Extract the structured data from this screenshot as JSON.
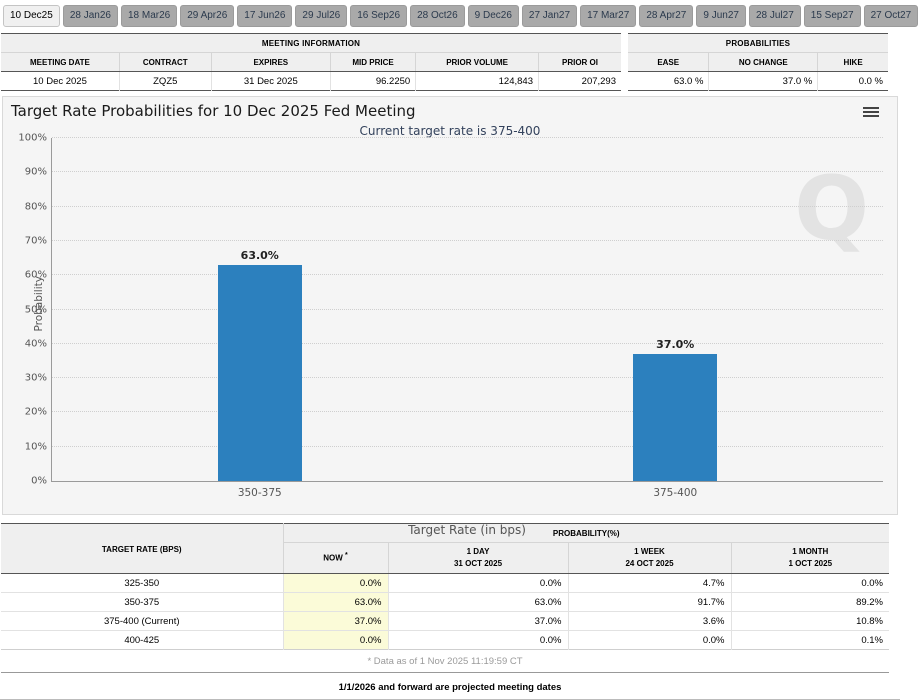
{
  "tabs": {
    "selected_index": 0,
    "labels": [
      "10 Dec25",
      "28 Jan26",
      "18 Mar26",
      "29 Apr26",
      "17 Jun26",
      "29 Jul26",
      "16 Sep26",
      "28 Oct26",
      "9 Dec26",
      "27 Jan27",
      "17 Mar27",
      "28 Apr27",
      "9 Jun27",
      "28 Jul27",
      "15 Sep27",
      "27 Oct27"
    ]
  },
  "meeting_info": {
    "title": "MEETING INFORMATION",
    "headers": [
      "MEETING DATE",
      "CONTRACT",
      "EXPIRES",
      "MID PRICE",
      "PRIOR VOLUME",
      "PRIOR OI"
    ],
    "values": [
      "10 Dec 2025",
      "ZQZ5",
      "31 Dec 2025",
      "96.2250",
      "124,843",
      "207,293"
    ],
    "value_align": [
      "c",
      "c",
      "c",
      "r",
      "r",
      "r"
    ]
  },
  "probabilities_summary": {
    "title": "PROBABILITIES",
    "headers": [
      "EASE",
      "NO CHANGE",
      "HIKE"
    ],
    "values": [
      "63.0 %",
      "37.0 %",
      "0.0 %"
    ]
  },
  "chart_data": {
    "type": "bar",
    "title": "Target Rate Probabilities for 10 Dec 2025 Fed Meeting",
    "subtitle": "Current target rate is 375-400",
    "categories": [
      "350-375",
      "375-400"
    ],
    "values": [
      63.0,
      37.0
    ],
    "bar_labels": [
      "63.0%",
      "37.0%"
    ],
    "xlabel": "Target Rate (in bps)",
    "ylabel": "Probability",
    "ylim": [
      0,
      100
    ],
    "ytick_step": 10,
    "ytick_suffix": "%",
    "grid": "dotted-horizontal",
    "legend": "none",
    "bar_color": "#2c80be",
    "watermark": "Q"
  },
  "probability_table": {
    "rate_header": "TARGET RATE (BPS)",
    "group_header": "PROBABILITY(%)",
    "now_label": "NOW",
    "now_superscript": "*",
    "history_columns": [
      {
        "line1": "1 DAY",
        "line2": "31 OCT 2025"
      },
      {
        "line1": "1 WEEK",
        "line2": "24 OCT 2025"
      },
      {
        "line1": "1 MONTH",
        "line2": "1 OCT 2025"
      }
    ],
    "rows": [
      {
        "rate": "325-350",
        "now": "0.0%",
        "day": "0.0%",
        "week": "4.7%",
        "month": "0.0%"
      },
      {
        "rate": "350-375",
        "now": "63.0%",
        "day": "63.0%",
        "week": "91.7%",
        "month": "89.2%"
      },
      {
        "rate": "375-400 (Current)",
        "now": "37.0%",
        "day": "37.0%",
        "week": "3.6%",
        "month": "10.8%"
      },
      {
        "rate": "400-425",
        "now": "0.0%",
        "day": "0.0%",
        "week": "0.0%",
        "month": "0.1%"
      }
    ],
    "footnote": "* Data as of 1 Nov 2025 11:19:59 CT"
  },
  "footer_note": "1/1/2026 and forward are projected meeting dates",
  "colors": {
    "bar": "#2c80be",
    "now_column_bg": "#fbfbd8",
    "subtitle_text": "#33425c",
    "tab_selected_bg": "#f0f0f0",
    "tab_bg": "#a9a9a9"
  }
}
